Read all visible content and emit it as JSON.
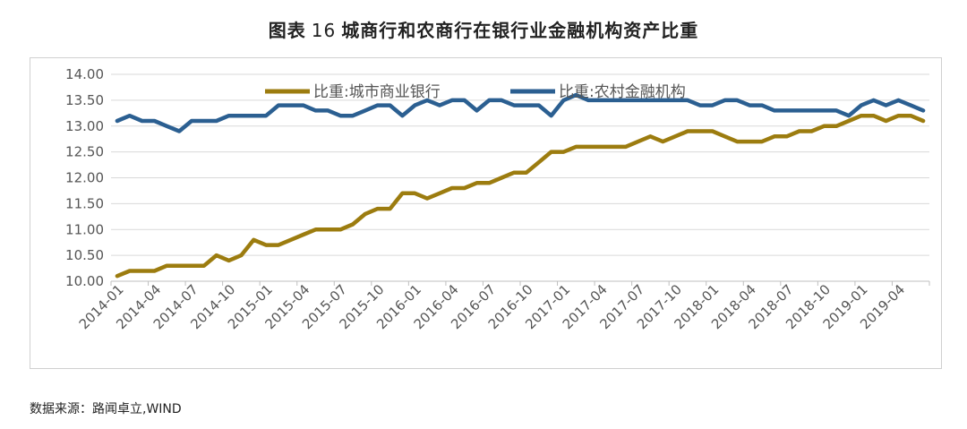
{
  "header": {
    "title_prefix": "图表",
    "title_number": "16",
    "title_text": "城商行和农商行在银行业金融机构资产比重"
  },
  "source_text": "数据来源：路闻卓立,WIND",
  "chart_data": {
    "type": "line",
    "ylim": [
      10.0,
      14.0
    ],
    "yticks": [
      "10.00",
      "10.50",
      "11.00",
      "11.50",
      "12.00",
      "12.50",
      "13.00",
      "13.50",
      "14.00"
    ],
    "grid": true,
    "legend_position": "top-center",
    "x": [
      "2014-01",
      "2014-02",
      "2014-03",
      "2014-04",
      "2014-05",
      "2014-06",
      "2014-07",
      "2014-08",
      "2014-09",
      "2014-10",
      "2014-11",
      "2014-12",
      "2015-01",
      "2015-02",
      "2015-03",
      "2015-04",
      "2015-05",
      "2015-06",
      "2015-07",
      "2015-08",
      "2015-09",
      "2015-10",
      "2015-11",
      "2015-12",
      "2016-01",
      "2016-02",
      "2016-03",
      "2016-04",
      "2016-05",
      "2016-06",
      "2016-07",
      "2016-08",
      "2016-09",
      "2016-10",
      "2016-11",
      "2016-12",
      "2017-01",
      "2017-02",
      "2017-03",
      "2017-04",
      "2017-05",
      "2017-06",
      "2017-07",
      "2017-08",
      "2017-09",
      "2017-10",
      "2017-11",
      "2017-12",
      "2018-01",
      "2018-02",
      "2018-03",
      "2018-04",
      "2018-05",
      "2018-06",
      "2018-07",
      "2018-08",
      "2018-09",
      "2018-10",
      "2018-11",
      "2018-12",
      "2019-01",
      "2019-02",
      "2019-03",
      "2019-04",
      "2019-05",
      "2019-06"
    ],
    "xticks": [
      "2014-01",
      "2014-04",
      "2014-07",
      "2014-10",
      "2015-01",
      "2015-04",
      "2015-07",
      "2015-10",
      "2016-01",
      "2016-04",
      "2016-07",
      "2016-10",
      "2017-01",
      "2017-04",
      "2017-07",
      "2017-10",
      "2018-01",
      "2018-04",
      "2018-07",
      "2018-10",
      "2019-01",
      "2019-04"
    ],
    "series": [
      {
        "name": "比重:城市商业银行",
        "color": "#9c7c0f",
        "values": [
          10.1,
          10.2,
          10.2,
          10.2,
          10.3,
          10.3,
          10.3,
          10.3,
          10.5,
          10.4,
          10.5,
          10.8,
          10.7,
          10.7,
          10.8,
          10.9,
          11.0,
          11.0,
          11.0,
          11.1,
          11.3,
          11.4,
          11.4,
          11.7,
          11.7,
          11.6,
          11.7,
          11.8,
          11.8,
          11.9,
          11.9,
          12.0,
          12.1,
          12.1,
          12.3,
          12.5,
          12.5,
          12.6,
          12.6,
          12.6,
          12.6,
          12.6,
          12.7,
          12.8,
          12.7,
          12.8,
          12.9,
          12.9,
          12.9,
          12.8,
          12.7,
          12.7,
          12.7,
          12.8,
          12.8,
          12.9,
          12.9,
          13.0,
          13.0,
          13.1,
          13.2,
          13.2,
          13.1,
          13.2,
          13.2,
          13.1
        ]
      },
      {
        "name": "比重:农村金融机构",
        "color": "#2b5f91",
        "values": [
          13.1,
          13.2,
          13.1,
          13.1,
          13.0,
          12.9,
          13.1,
          13.1,
          13.1,
          13.2,
          13.2,
          13.2,
          13.2,
          13.4,
          13.4,
          13.4,
          13.3,
          13.3,
          13.2,
          13.2,
          13.3,
          13.4,
          13.4,
          13.2,
          13.4,
          13.5,
          13.4,
          13.5,
          13.5,
          13.3,
          13.5,
          13.5,
          13.4,
          13.4,
          13.4,
          13.2,
          13.5,
          13.6,
          13.5,
          13.5,
          13.5,
          13.5,
          13.5,
          13.5,
          13.5,
          13.5,
          13.5,
          13.4,
          13.4,
          13.5,
          13.5,
          13.4,
          13.4,
          13.3,
          13.3,
          13.3,
          13.3,
          13.3,
          13.3,
          13.2,
          13.4,
          13.5,
          13.4,
          13.5,
          13.4,
          13.3
        ]
      }
    ]
  }
}
